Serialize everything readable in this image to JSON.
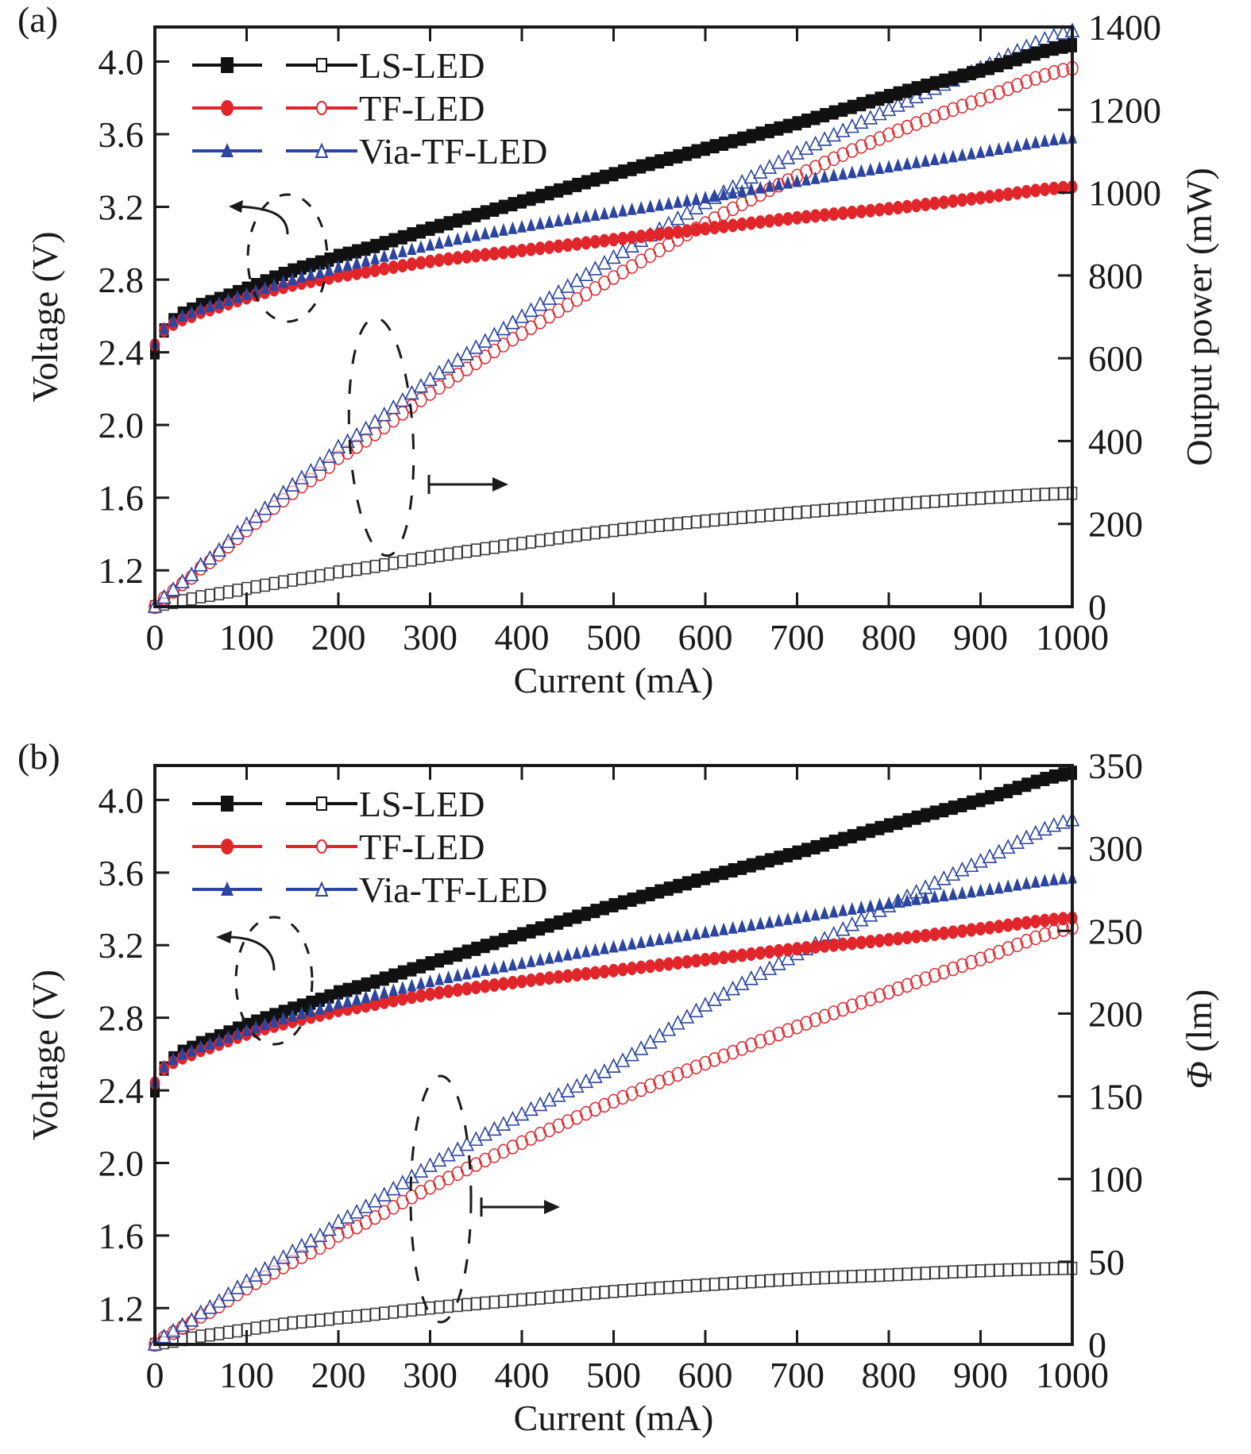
{
  "chart_data": [
    {
      "type": "line",
      "panel_label": "(a)",
      "xlabel": "Current (mA)",
      "ylabel_left": "Voltage (V)",
      "ylabel_right": "Output power (mW)",
      "xlim": [
        0,
        1000
      ],
      "ylim_left": [
        1.0,
        4.19
      ],
      "ylim_right": [
        0,
        1400
      ],
      "x_ticks": [
        0,
        100,
        200,
        300,
        400,
        500,
        600,
        700,
        800,
        900,
        1000
      ],
      "x_tick_labels": [
        "0",
        "100",
        "200",
        "300",
        "400",
        "500",
        "600",
        "700",
        "800",
        "900",
        "1000"
      ],
      "y_left_ticks": [
        1.2,
        1.6,
        2.0,
        2.4,
        2.8,
        3.2,
        3.6,
        4.0
      ],
      "y_left_tick_labels": [
        "1.2",
        "1.6",
        "2.0",
        "2.4",
        "2.8",
        "3.2",
        "3.6",
        "4.0"
      ],
      "y_right_ticks": [
        0,
        200,
        400,
        600,
        800,
        1000,
        1200,
        1400
      ],
      "y_right_tick_labels": [
        "0",
        "200",
        "400",
        "600",
        "800",
        "1000",
        "1200",
        "1400"
      ],
      "grid": false,
      "legend_placement": "top-left",
      "legend": [
        {
          "label": "LS-LED",
          "color": "#111111"
        },
        {
          "label": "TF-LED",
          "color": "#e0262b"
        },
        {
          "label": "Via-TF-LED",
          "color": "#2b45a0"
        }
      ],
      "x": [
        0,
        10,
        25,
        50,
        100,
        150,
        200,
        300,
        400,
        500,
        600,
        700,
        800,
        900,
        1000
      ],
      "series": [
        {
          "name": "LS-LED voltage",
          "axis": "left",
          "marker": "filled-square",
          "color": "#111111",
          "values": [
            2.4,
            2.52,
            2.6,
            2.66,
            2.75,
            2.85,
            2.93,
            3.08,
            3.23,
            3.38,
            3.52,
            3.66,
            3.81,
            3.95,
            4.09
          ]
        },
        {
          "name": "TF-LED voltage",
          "axis": "left",
          "marker": "filled-circle",
          "color": "#e0262b",
          "values": [
            2.44,
            2.52,
            2.57,
            2.62,
            2.7,
            2.77,
            2.82,
            2.9,
            2.96,
            3.02,
            3.08,
            3.14,
            3.19,
            3.25,
            3.31
          ]
        },
        {
          "name": "Via-TF-LED voltage",
          "axis": "left",
          "marker": "filled-triangle",
          "color": "#2b45a0",
          "values": [
            2.45,
            2.53,
            2.59,
            2.64,
            2.72,
            2.8,
            2.87,
            2.99,
            3.09,
            3.17,
            3.25,
            3.34,
            3.42,
            3.5,
            3.58
          ]
        },
        {
          "name": "LS-LED output power",
          "axis": "right",
          "marker": "open-square",
          "color": "#111111",
          "values": [
            0,
            6,
            13,
            24,
            44,
            64,
            84,
            120,
            153,
            184,
            207,
            227,
            246,
            262,
            274
          ]
        },
        {
          "name": "TF-LED output power",
          "axis": "right",
          "marker": "open-circle",
          "color": "#e0262b",
          "values": [
            0,
            20,
            48,
            93,
            185,
            275,
            360,
            515,
            660,
            795,
            925,
            1040,
            1140,
            1225,
            1300
          ]
        },
        {
          "name": "Via-TF-LED output power",
          "axis": "right",
          "marker": "open-triangle",
          "color": "#2b45a0",
          "values": [
            0,
            22,
            52,
            100,
            198,
            293,
            385,
            548,
            700,
            843,
            975,
            1095,
            1200,
            1300,
            1390
          ]
        }
      ],
      "annotations": [
        {
          "type": "dashed-ellipse-with-arrow",
          "direction": "left",
          "refers_to": "left axis (voltage)"
        },
        {
          "type": "dashed-ellipse-with-arrow",
          "direction": "right",
          "refers_to": "right axis (output power)"
        }
      ]
    },
    {
      "type": "line",
      "panel_label": "(b)",
      "xlabel": "Current (mA)",
      "ylabel_left": "Voltage (V)",
      "ylabel_right_symbol": "Φ",
      "ylabel_right_unit": " (lm)",
      "xlim": [
        0,
        1000
      ],
      "ylim_left": [
        1.0,
        4.19
      ],
      "ylim_right": [
        0,
        350
      ],
      "x_ticks": [
        0,
        100,
        200,
        300,
        400,
        500,
        600,
        700,
        800,
        900,
        1000
      ],
      "x_tick_labels": [
        "0",
        "100",
        "200",
        "300",
        "400",
        "500",
        "600",
        "700",
        "800",
        "900",
        "1000"
      ],
      "y_left_ticks": [
        1.2,
        1.6,
        2.0,
        2.4,
        2.8,
        3.2,
        3.6,
        4.0
      ],
      "y_left_tick_labels": [
        "1.2",
        "1.6",
        "2.0",
        "2.4",
        "2.8",
        "3.2",
        "3.6",
        "4.0"
      ],
      "y_right_ticks": [
        0,
        50,
        100,
        150,
        200,
        250,
        300,
        350
      ],
      "y_right_tick_labels": [
        "0",
        "50",
        "100",
        "150",
        "200",
        "250",
        "300",
        "350"
      ],
      "grid": false,
      "legend_placement": "top-left",
      "legend": [
        {
          "label": "LS-LED",
          "color": "#111111"
        },
        {
          "label": "TF-LED",
          "color": "#e0262b"
        },
        {
          "label": "Via-TF-LED",
          "color": "#2b45a0"
        }
      ],
      "x": [
        0,
        10,
        25,
        50,
        100,
        150,
        200,
        300,
        400,
        500,
        600,
        700,
        800,
        900,
        1000
      ],
      "series": [
        {
          "name": "LS-LED voltage",
          "axis": "left",
          "marker": "filled-square",
          "color": "#111111",
          "values": [
            2.4,
            2.52,
            2.6,
            2.66,
            2.76,
            2.85,
            2.94,
            3.1,
            3.26,
            3.42,
            3.57,
            3.71,
            3.86,
            4.0,
            4.15
          ]
        },
        {
          "name": "TF-LED voltage",
          "axis": "left",
          "marker": "filled-circle",
          "color": "#e0262b",
          "values": [
            2.44,
            2.52,
            2.57,
            2.62,
            2.71,
            2.78,
            2.84,
            2.93,
            3.0,
            3.06,
            3.12,
            3.18,
            3.23,
            3.29,
            3.35
          ]
        },
        {
          "name": "Via-TF-LED voltage",
          "axis": "left",
          "marker": "filled-triangle",
          "color": "#2b45a0",
          "values": [
            2.45,
            2.53,
            2.59,
            2.64,
            2.73,
            2.81,
            2.88,
            3.0,
            3.1,
            3.19,
            3.27,
            3.35,
            3.43,
            3.5,
            3.57
          ]
        },
        {
          "name": "LS-LED luminous flux",
          "axis": "right",
          "marker": "open-square",
          "color": "#111111",
          "values": [
            0,
            1,
            2.5,
            5,
            9,
            13,
            16,
            22,
            27,
            32,
            36,
            39.5,
            42,
            44.5,
            46
          ]
        },
        {
          "name": "TF-LED luminous flux",
          "axis": "right",
          "marker": "open-circle",
          "color": "#e0262b",
          "values": [
            0,
            4,
            9,
            17,
            34,
            50,
            66,
            95,
            122,
            147,
            170,
            192,
            213,
            233,
            252
          ]
        },
        {
          "name": "Via-TF-LED luminous flux",
          "axis": "right",
          "marker": "open-triangle",
          "color": "#2b45a0",
          "values": [
            0,
            4.5,
            10,
            19,
            38,
            56,
            74,
            108,
            139,
            168,
            205,
            236,
            265,
            292,
            317
          ]
        }
      ],
      "annotations": [
        {
          "type": "dashed-ellipse-with-arrow",
          "direction": "left",
          "refers_to": "left axis (voltage)"
        },
        {
          "type": "dashed-ellipse-with-arrow",
          "direction": "right",
          "refers_to": "right axis (luminous flux)"
        }
      ]
    }
  ]
}
